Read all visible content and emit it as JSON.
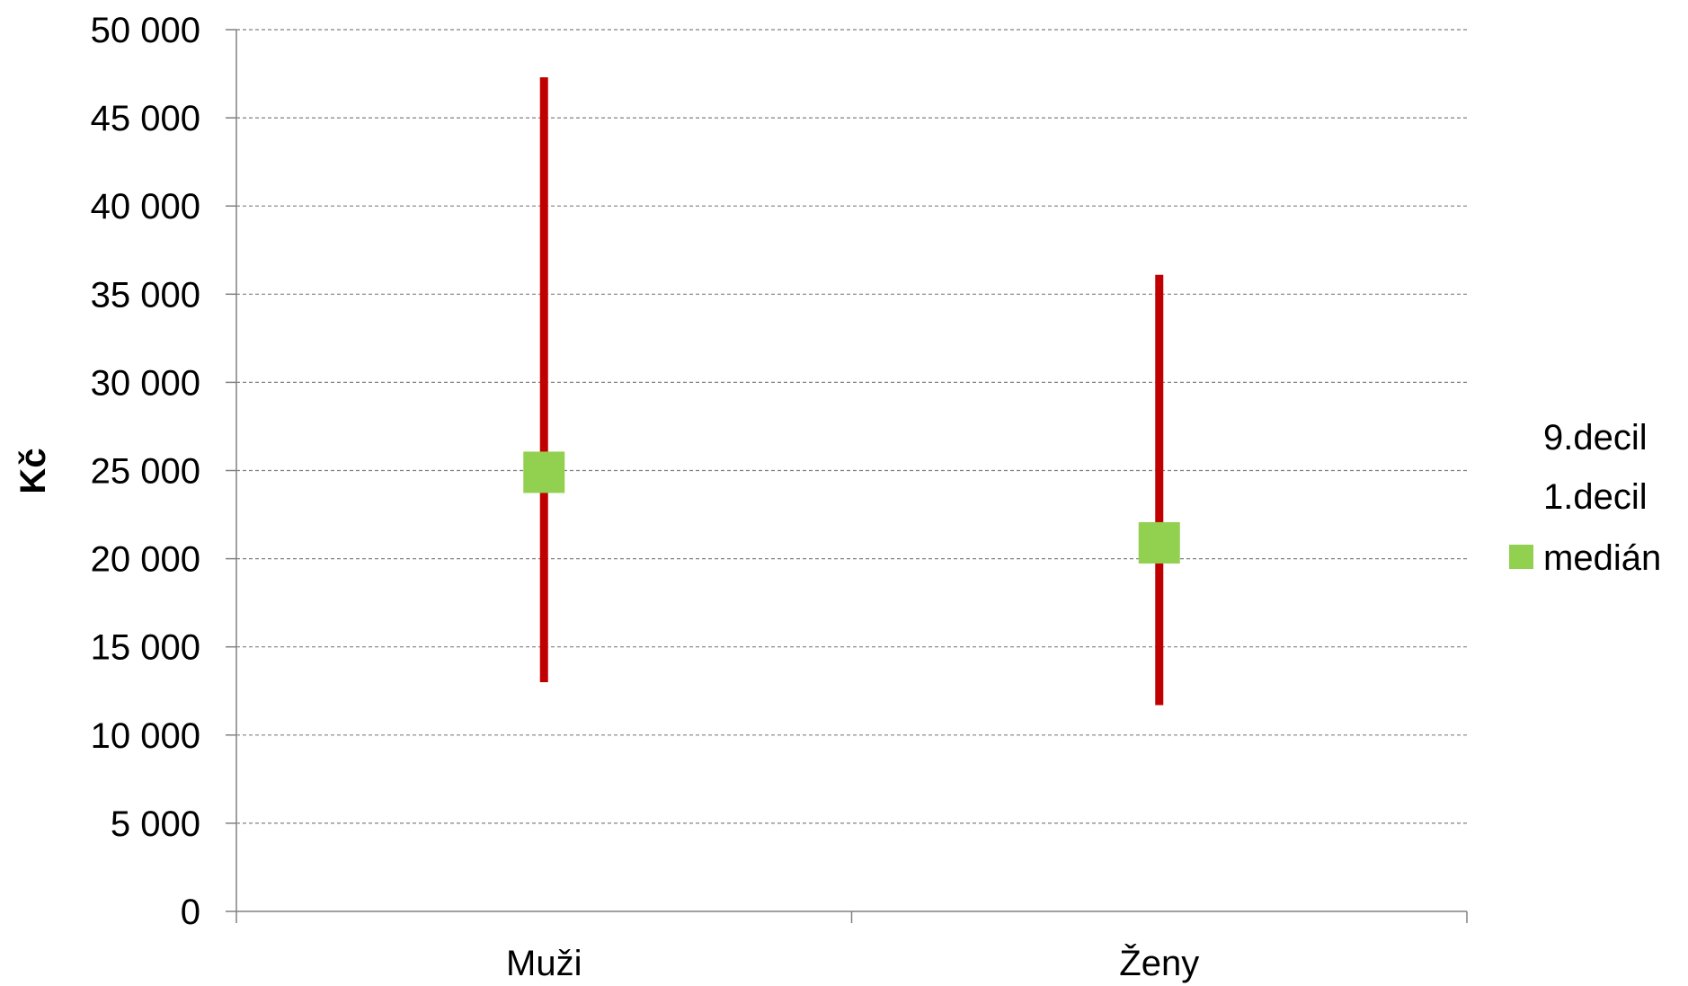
{
  "chart_data": {
    "type": "stock",
    "title": "",
    "xlabel": "",
    "ylabel": "Kč",
    "ylim": [
      0,
      50000
    ],
    "ytick_step": 5000,
    "ytick_labels": [
      "0",
      "5 000",
      "10 000",
      "15 000",
      "20 000",
      "25 000",
      "30 000",
      "35 000",
      "40 000",
      "45 000",
      "50 000"
    ],
    "grid": true,
    "grid_style": "dashed",
    "legend_position": "right",
    "categories": [
      "Muži",
      "Ženy"
    ],
    "series": [
      {
        "name": "9.decil",
        "values": [
          47300,
          36100
        ]
      },
      {
        "name": "1.decil",
        "values": [
          13000,
          11700
        ]
      },
      {
        "name": "medián",
        "values": [
          24900,
          20900
        ]
      }
    ],
    "colors": {
      "range_line": "#c00000",
      "median_marker": "#92d050",
      "grid": "#808080",
      "axis": "#808080"
    }
  }
}
